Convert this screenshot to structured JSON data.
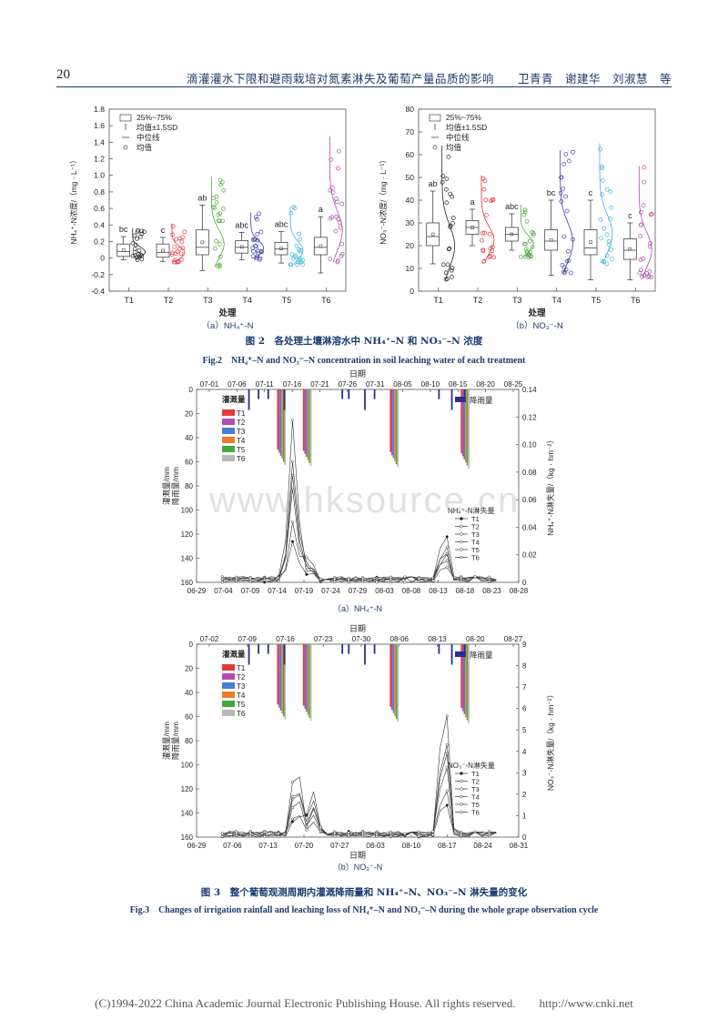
{
  "header": {
    "page_number": "20",
    "running_title": "滴灌灌水下限和避雨栽培对氮素淋失及葡萄产量品质的影响　　卫青青　谢建华　刘淑慧　等"
  },
  "fig2": {
    "caption_cn": "图 2　各处理土壤淋溶水中 NH₄⁺–N 和 NO₃⁻–N 浓度",
    "caption_en": "Fig.2　NH₄⁺–N and NO₃⁻–N concentration in soil leaching water of each treatment",
    "legend": [
      "25%~75%",
      "均值±1.5SD",
      "中位线",
      "均值"
    ],
    "xlabel": "处理",
    "categories": [
      "T1",
      "T2",
      "T3",
      "T4",
      "T5",
      "T6"
    ],
    "colors": [
      "#222222",
      "#e8353a",
      "#4aa832",
      "#3d3daa",
      "#3ab5d8",
      "#b04aa8"
    ],
    "a": {
      "sub": "（a）NH₄⁺-N",
      "ylabel": "NH₄⁺-N浓度/（mg · L⁻¹）",
      "yticks": [
        "-0.4",
        "-0.2",
        "0",
        "0.2",
        "0.4",
        "0.6",
        "0.8",
        "1.0",
        "1.2",
        "1.4",
        "1.6",
        "1.8"
      ],
      "letters": [
        "bc",
        "c",
        "ab",
        "abc",
        "abc",
        "a"
      ]
    },
    "b": {
      "sub": "（b）NO₃⁻-N",
      "ylabel": "NO₃⁻-N浓度/（mg · L⁻¹）",
      "yticks": [
        "0",
        "10",
        "20",
        "30",
        "40",
        "50",
        "60",
        "70",
        "80"
      ],
      "letters": [
        "ab",
        "a",
        "abc",
        "bc",
        "c",
        "c"
      ]
    }
  },
  "fig3": {
    "caption_cn": "图 3　整个葡萄观测周期内灌溉降雨量和 NH₄⁺–N、NO₃⁻–N 淋失量的变化",
    "caption_en": "Fig.3　Changes of irrigation rainfall and leaching loss of NH₄⁺–N and NO₃⁻–N during the whole grape observation cycle",
    "top_axis_label": "日期",
    "irrigation_legend_title": "灌溉量",
    "rain_legend": "降雨量",
    "left_ylabel": "灌溉量/mm\n降雨量/mm",
    "series": [
      "T1",
      "T2",
      "T3",
      "T4",
      "T5",
      "T6"
    ],
    "series_colors": [
      "#e23a3a",
      "#b44ab4",
      "#4a7fd4",
      "#f07a2a",
      "#46a83a",
      "#b8b8b8"
    ],
    "a": {
      "sub": "（a）NH₄⁺-N",
      "top_dates": [
        "07-01",
        "07-06",
        "07-11",
        "07-16",
        "07-21",
        "07-26",
        "07-31",
        "08-05",
        "08-10",
        "08-15",
        "08-20",
        "08-25"
      ],
      "bottom_dates": [
        "06-29",
        "07-04",
        "07-09",
        "07-14",
        "07-19",
        "07-24",
        "07-29",
        "08-03",
        "08-08",
        "08-13",
        "08-18",
        "08-23",
        "08-28"
      ],
      "left_ticks": [
        "0",
        "20",
        "40",
        "60",
        "80",
        "100",
        "120",
        "140",
        "160"
      ],
      "right_ticks": [
        "0",
        "0.02",
        "0.04",
        "0.06",
        "0.08",
        "0.10",
        "0.12",
        "0.14"
      ],
      "right_ylabel": "NH₄⁺-N淋失量/（kg · hm⁻²）",
      "loss_title": "NH₄⁺-N淋失量"
    },
    "b": {
      "sub": "（b）NO₃⁻-N",
      "xlabel": "日期",
      "top_dates": [
        "07-02",
        "07-09",
        "07-16",
        "07-23",
        "07-30",
        "08-06",
        "08-13",
        "08-20",
        "08-27"
      ],
      "bottom_dates": [
        "06-29",
        "07-06",
        "07-13",
        "07-20",
        "07-27",
        "08-03",
        "08-10",
        "08-17",
        "08-24",
        "08-31"
      ],
      "left_ticks": [
        "0",
        "20",
        "40",
        "60",
        "80",
        "100",
        "120",
        "140",
        "160"
      ],
      "right_ticks": [
        "0",
        "1",
        "2",
        "3",
        "4",
        "5",
        "6",
        "7",
        "8",
        "9"
      ],
      "right_ylabel": "NO₃⁻-N淋失量/（kg · hm⁻²）",
      "loss_title": "NO₃⁻-N淋失量"
    }
  },
  "footer": "(C)1994-2022 China Academic Journal Electronic Publishing House. All rights reserved.　　http://www.cnki.net",
  "watermark": "www.hksource.cn"
}
